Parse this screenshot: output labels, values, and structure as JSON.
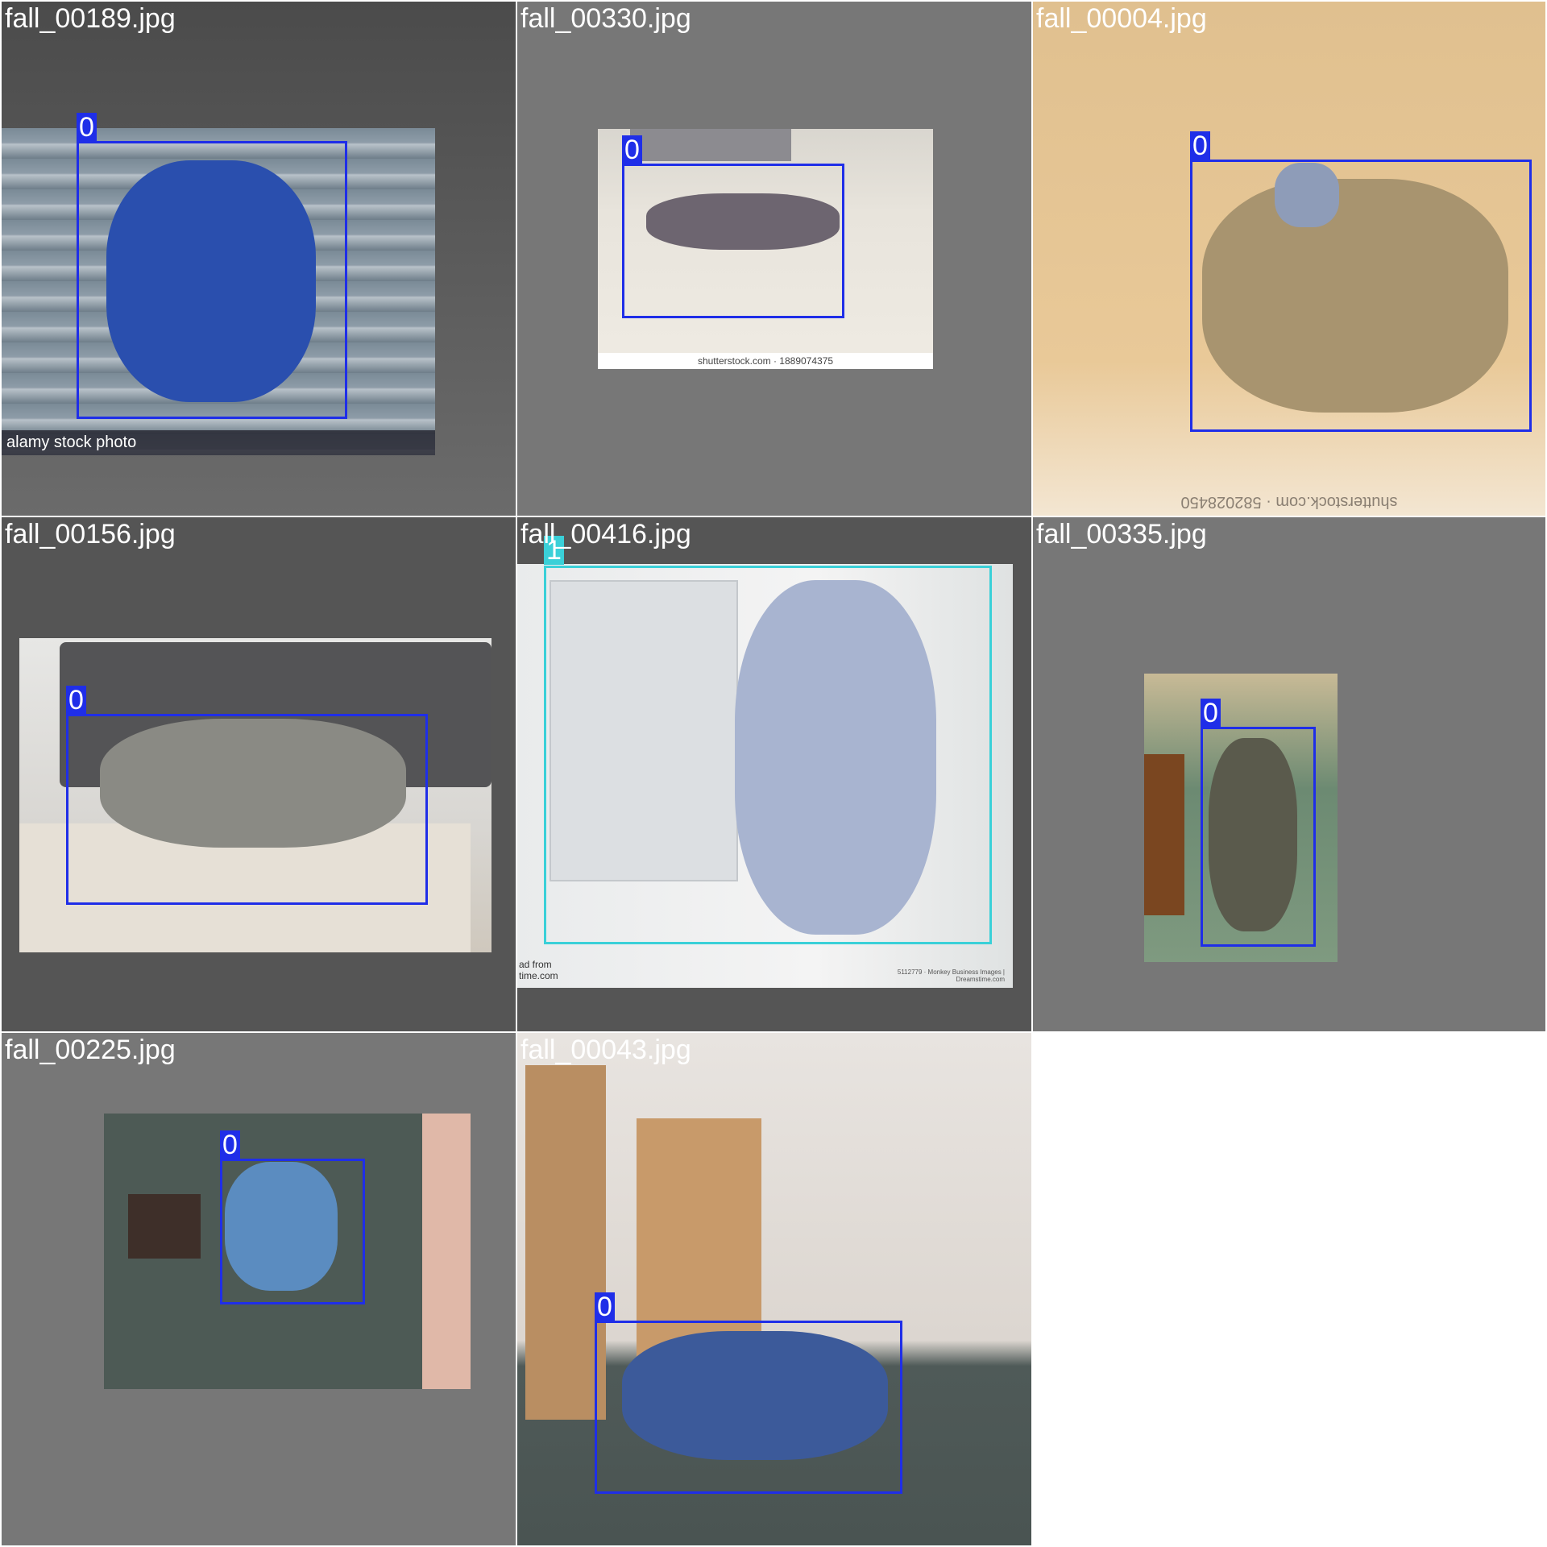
{
  "tiles": [
    {
      "file": "fall_00189.jpg",
      "label": "0",
      "watermark": "alamy stock photo"
    },
    {
      "file": "fall_00330.jpg",
      "label": "0",
      "watermark": "shutterstock.com · 1889074375"
    },
    {
      "file": "fall_00004.jpg",
      "label": "0",
      "watermark": "shutterstock.com · 582028450"
    },
    {
      "file": "fall_00156.jpg",
      "label": "0"
    },
    {
      "file": "fall_00416.jpg",
      "label": "1",
      "watermark_left": "ad from time.com",
      "watermark_right": "5112779 · Monkey Business Images | Dreamstime.com"
    },
    {
      "file": "fall_00335.jpg",
      "label": "0"
    },
    {
      "file": "fall_00225.jpg",
      "label": "0"
    },
    {
      "file": "fall_00043.jpg",
      "label": "0"
    }
  ],
  "colors": {
    "class0_box": "#1f2ee8",
    "class1_box": "#3ad0d8",
    "tile_gray_dark": "#555555",
    "tile_gray_mid": "#777777"
  }
}
